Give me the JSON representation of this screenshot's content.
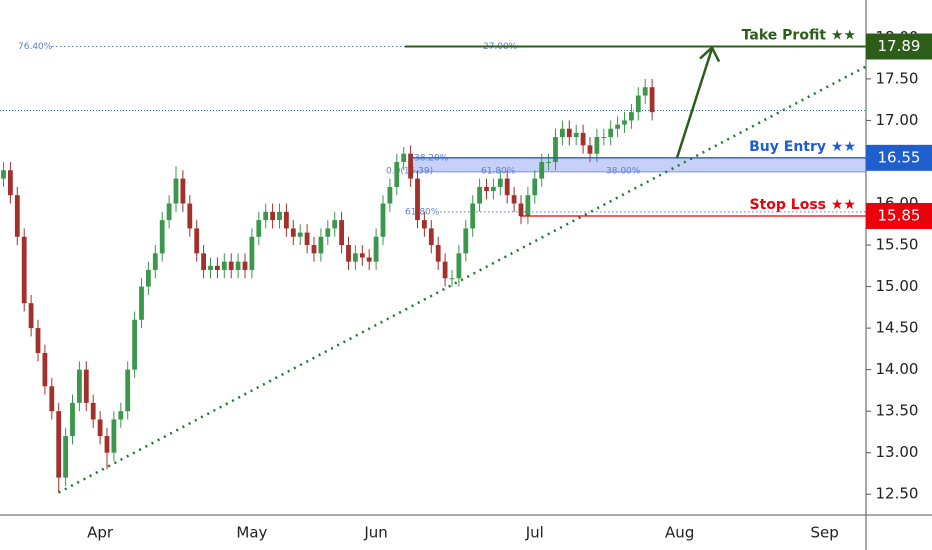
{
  "chart_data": {
    "type": "candlestick",
    "up_color": "#3a974b",
    "down_color": "#a3302a",
    "ylim": [
      12.25,
      18.45
    ],
    "yticks": [
      {
        "value": 12.5,
        "label": "12.50"
      },
      {
        "value": 13,
        "label": "13.00"
      },
      {
        "value": 13.5,
        "label": "13.50"
      },
      {
        "value": 14,
        "label": "14.00"
      },
      {
        "value": 14.5,
        "label": "14.50"
      },
      {
        "value": 15,
        "label": "15.00"
      },
      {
        "value": 15.5,
        "label": "15.50"
      },
      {
        "value": 16,
        "label": "16.00"
      },
      {
        "value": 16.5,
        "label": "16.50"
      },
      {
        "value": 17,
        "label": "17.00"
      },
      {
        "value": 17.5,
        "label": "17.50"
      },
      {
        "value": 18,
        "label": "18.00"
      }
    ],
    "categories": [
      null,
      null,
      null,
      null,
      null,
      null,
      null,
      null,
      null,
      null,
      null,
      null,
      null,
      null,
      "Apr",
      null,
      null,
      null,
      null,
      null,
      null,
      null,
      null,
      null,
      null,
      null,
      null,
      null,
      null,
      null,
      null,
      null,
      null,
      null,
      null,
      null,
      "May",
      null,
      null,
      null,
      null,
      null,
      null,
      null,
      null,
      null,
      null,
      null,
      null,
      null,
      null,
      null,
      null,
      null,
      "Jun",
      null,
      null,
      null,
      null,
      null,
      null,
      null,
      null,
      null,
      null,
      null,
      null,
      null,
      null,
      null,
      null,
      null,
      null,
      null,
      null,
      null,
      null,
      "Jul",
      null,
      null,
      null,
      null,
      null,
      null,
      null,
      null,
      null,
      null,
      null,
      null,
      null,
      null,
      null,
      null,
      null,
      null,
      null,
      null,
      "Aug",
      null,
      null,
      null,
      null,
      null,
      null,
      null,
      null,
      null,
      null,
      null,
      null,
      null,
      null,
      null,
      null,
      null,
      null,
      null,
      null,
      "Sep",
      null,
      null,
      null,
      null,
      null
    ],
    "open": [
      16.3,
      16.4,
      16.1,
      15.6,
      14.8,
      14.5,
      14.2,
      13.8,
      13.5,
      12.7,
      13.2,
      13.6,
      14.0,
      13.6,
      13.4,
      13.2,
      13.0,
      13.4,
      13.5,
      14.0,
      14.6,
      15.0,
      15.2,
      15.4,
      15.8,
      16.0,
      16.3,
      16.0,
      15.7,
      15.4,
      15.2,
      15.25,
      15.2,
      15.3,
      15.2,
      15.3,
      15.2,
      15.6,
      15.8,
      15.9,
      15.8,
      15.9,
      15.7,
      15.6,
      15.65,
      15.5,
      15.4,
      15.6,
      15.7,
      15.8,
      15.5,
      15.3,
      15.4,
      15.35,
      15.3,
      15.6,
      16.0,
      16.2,
      16.5,
      16.6,
      16.3,
      15.8,
      15.7,
      15.5,
      15.3,
      15.1,
      15.1,
      15.4,
      15.7,
      16.0,
      16.2,
      16.15,
      16.2,
      16.3,
      16.1,
      16.0,
      15.85,
      16.1,
      16.3,
      16.5,
      16.5,
      16.8,
      16.9,
      16.8,
      16.85,
      16.7,
      16.6,
      16.8,
      16.8,
      16.9,
      16.95,
      17.0,
      17.1,
      17.3,
      17.4,
      null,
      null,
      null,
      null,
      null,
      null,
      null,
      null,
      null,
      null,
      null,
      null,
      null,
      null,
      null,
      null,
      null,
      null,
      null,
      null,
      null,
      null,
      null,
      null,
      null,
      null,
      null,
      null,
      null,
      null
    ],
    "high": [
      16.5,
      16.5,
      16.2,
      15.7,
      14.9,
      14.6,
      14.3,
      13.9,
      13.6,
      13.3,
      13.7,
      14.1,
      14.1,
      13.7,
      13.5,
      13.3,
      13.5,
      13.6,
      14.1,
      14.7,
      15.1,
      15.3,
      15.5,
      15.9,
      16.1,
      16.45,
      16.4,
      16.1,
      15.8,
      15.5,
      15.35,
      15.35,
      15.4,
      15.4,
      15.4,
      15.4,
      15.7,
      15.9,
      16.0,
      16.0,
      16.0,
      16.0,
      15.8,
      15.75,
      15.75,
      15.6,
      15.7,
      15.8,
      15.9,
      15.9,
      15.6,
      15.5,
      15.5,
      15.45,
      15.7,
      16.1,
      16.3,
      16.6,
      16.68,
      16.7,
      16.4,
      15.9,
      15.8,
      15.6,
      15.4,
      15.2,
      15.5,
      15.8,
      16.1,
      16.3,
      16.3,
      16.3,
      16.4,
      16.4,
      16.2,
      16.1,
      16.2,
      16.4,
      16.6,
      16.6,
      16.9,
      17.0,
      17.0,
      16.95,
      16.95,
      16.8,
      16.9,
      16.9,
      17.0,
      17.05,
      17.1,
      17.2,
      17.4,
      17.5,
      17.5,
      null,
      null,
      null,
      null,
      null,
      null,
      null,
      null,
      null,
      null,
      null,
      null,
      null,
      null,
      null,
      null,
      null,
      null,
      null,
      null,
      null,
      null,
      null,
      null,
      null,
      null,
      null,
      null,
      null,
      null
    ],
    "low": [
      16.2,
      16.0,
      15.5,
      14.7,
      14.4,
      14.1,
      13.7,
      13.4,
      12.52,
      12.6,
      13.1,
      13.5,
      13.5,
      13.3,
      13.1,
      12.8,
      12.9,
      13.3,
      13.4,
      13.9,
      14.5,
      14.9,
      15.1,
      15.3,
      15.7,
      15.9,
      15.9,
      15.6,
      15.3,
      15.1,
      15.1,
      15.1,
      15.1,
      15.1,
      15.1,
      15.1,
      15.1,
      15.5,
      15.7,
      15.7,
      15.7,
      15.6,
      15.5,
      15.5,
      15.4,
      15.3,
      15.3,
      15.5,
      15.6,
      15.4,
      15.2,
      15.2,
      15.25,
      15.2,
      15.2,
      15.5,
      15.9,
      16.1,
      16.4,
      16.2,
      15.7,
      15.6,
      15.4,
      15.2,
      15.0,
      15.0,
      15.0,
      15.3,
      15.6,
      15.9,
      16.05,
      16.05,
      16.1,
      16.0,
      15.9,
      15.75,
      15.75,
      16.0,
      16.2,
      16.4,
      16.4,
      16.7,
      16.7,
      16.7,
      16.6,
      16.5,
      16.5,
      16.7,
      16.7,
      16.8,
      16.85,
      16.9,
      17.0,
      17.2,
      17.0,
      null,
      null,
      null,
      null,
      null,
      null,
      null,
      null,
      null,
      null,
      null,
      null,
      null,
      null,
      null,
      null,
      null,
      null,
      null,
      null,
      null,
      null,
      null,
      null,
      null,
      null,
      null,
      null,
      null,
      null
    ],
    "close": [
      16.4,
      16.1,
      15.6,
      14.8,
      14.5,
      14.2,
      13.8,
      13.5,
      12.7,
      13.2,
      13.6,
      14.0,
      13.6,
      13.4,
      13.2,
      13.0,
      13.4,
      13.5,
      14.0,
      14.6,
      15.0,
      15.2,
      15.4,
      15.8,
      16.0,
      16.3,
      16.0,
      15.7,
      15.4,
      15.2,
      15.25,
      15.2,
      15.3,
      15.2,
      15.3,
      15.2,
      15.6,
      15.8,
      15.9,
      15.8,
      15.9,
      15.7,
      15.6,
      15.65,
      15.5,
      15.4,
      15.6,
      15.7,
      15.8,
      15.5,
      15.3,
      15.4,
      15.35,
      15.3,
      15.6,
      16.0,
      16.2,
      16.5,
      16.6,
      16.3,
      15.8,
      15.7,
      15.5,
      15.3,
      15.1,
      15.1,
      15.4,
      15.7,
      16.0,
      16.2,
      16.15,
      16.2,
      16.3,
      16.1,
      16.0,
      15.85,
      16.1,
      16.3,
      16.5,
      16.5,
      16.8,
      16.9,
      16.8,
      16.85,
      16.7,
      16.6,
      16.8,
      16.8,
      16.9,
      16.95,
      17.0,
      17.1,
      17.3,
      17.4,
      17.1,
      null,
      null,
      null,
      null,
      null,
      null,
      null,
      null,
      null,
      null,
      null,
      null,
      null,
      null,
      null,
      null,
      null,
      null,
      null,
      null,
      null,
      null,
      null,
      null,
      null,
      null,
      null,
      null,
      null,
      null
    ],
    "last_price": 17.12,
    "trendline": {
      "x": [
        8,
        125
      ],
      "values": [
        12.52,
        17.65
      ],
      "color": "#1e7a2e"
    },
    "entry_zone": [
      16.38,
      16.55
    ],
    "annotations": [
      {
        "label": "Take Profit ★★",
        "value": 17.89,
        "color": "#2c5e1a"
      },
      {
        "label": "Buy Entry ★★",
        "value": 16.55,
        "color": "#1f5ecf"
      },
      {
        "label": "Stop Loss ★★",
        "value": 15.85,
        "color": "#e8000b"
      }
    ],
    "fib_levels": [
      {
        "label": "76.40%",
        "value": 17.89
      },
      {
        "label": "27.00%",
        "value": 17.89
      },
      {
        "label": "38.20%",
        "value": 16.55
      },
      {
        "label": "0.0(16.39)",
        "value": 16.39
      },
      {
        "label": "61.80%",
        "value": 16.39
      },
      {
        "label": "38.00%",
        "value": 16.39
      },
      {
        "label": "61.80%",
        "value": 15.9
      }
    ]
  }
}
